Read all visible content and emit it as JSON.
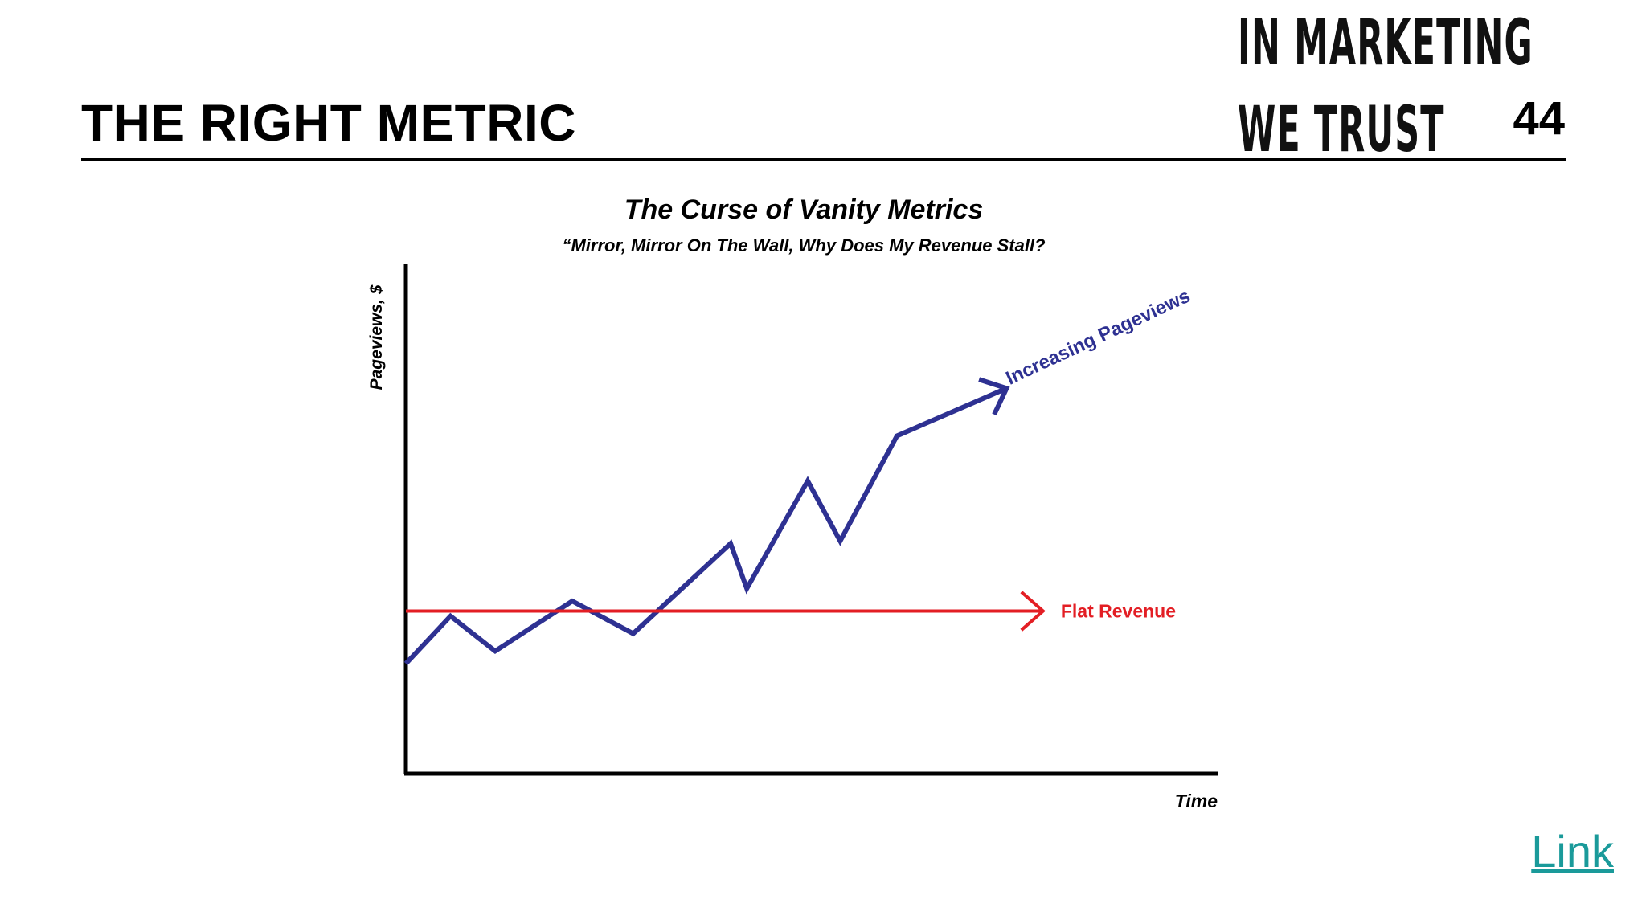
{
  "slide": {
    "title": "THE RIGHT METRIC",
    "brand_line1": "IN MARKETING",
    "brand_line2": "WE TRUST",
    "page_number": "44",
    "link_label": "Link"
  },
  "colors": {
    "pageviews": "#2e3192",
    "revenue": "#e31e24",
    "axis": "#000000",
    "link": "#1a9a9a"
  },
  "chart_data": {
    "type": "line",
    "title": "The Curse of Vanity Metrics",
    "subtitle": "“Mirror, Mirror On The Wall, Why Does My Revenue Stall?",
    "xlabel": "Time",
    "ylabel": "Pageviews, $",
    "xlim": [
      0,
      100
    ],
    "ylim": [
      0,
      100
    ],
    "grid": false,
    "legend": "none",
    "series": [
      {
        "name": "Increasing Pageviews",
        "x": [
          0,
          5.5,
          11,
          20.5,
          28,
          40,
          42,
          49.5,
          53.5,
          60.5,
          74
        ],
        "y": [
          22,
          31.5,
          24.5,
          34.5,
          28,
          46,
          37,
          58.5,
          46.5,
          67.5,
          77
        ],
        "arrow_end": true
      },
      {
        "name": "Flat Revenue",
        "x": [
          0,
          78.5
        ],
        "y": [
          32.5,
          32.5
        ],
        "arrow_end": true
      }
    ]
  }
}
